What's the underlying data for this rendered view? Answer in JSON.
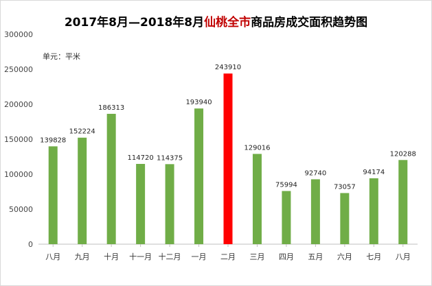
{
  "chart_data": {
    "type": "bar",
    "title_part1": "2017年8月—2018年8月",
    "title_city": "仙桃全市",
    "title_part2": "商品房成交面积趋势图",
    "unit_label": "单元：平米",
    "categories": [
      "八月",
      "九月",
      "十月",
      "十一月",
      "十二月",
      "一月",
      "二月",
      "三月",
      "四月",
      "五月",
      "六月",
      "七月",
      "八月"
    ],
    "values": [
      139828,
      152224,
      186313,
      114720,
      114375,
      193940,
      243910,
      129016,
      75994,
      92740,
      73057,
      94174,
      120288
    ],
    "highlight_index": 6,
    "ylim": [
      0,
      300000
    ],
    "yticks": [
      0,
      50000,
      100000,
      150000,
      200000,
      250000,
      300000
    ],
    "grid": false,
    "colors": {
      "bar": "#70ad47",
      "bar_highlight": "#ff0000",
      "title_highlight": "#c00000"
    }
  }
}
